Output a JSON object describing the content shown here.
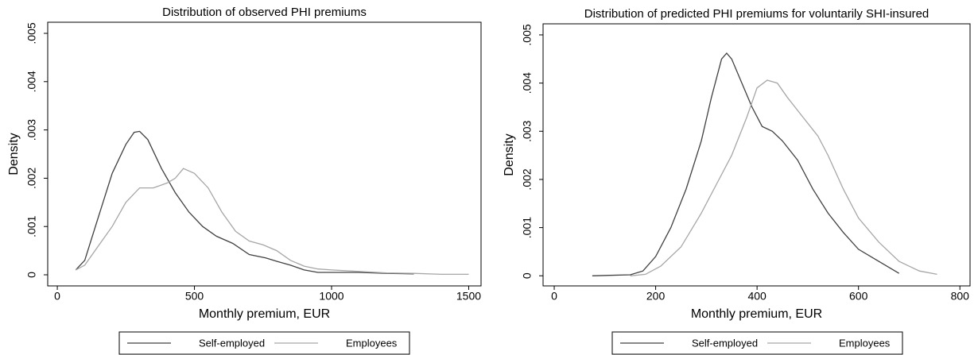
{
  "chart_data": [
    {
      "type": "line",
      "title": "Distribution of observed PHI premiums",
      "xlabel": "Monthly premium, EUR",
      "ylabel": "Density",
      "xlim": [
        -35,
        1545
      ],
      "ylim": [
        -0.00023,
        0.00523
      ],
      "xticks": [
        0,
        500,
        1000,
        1500
      ],
      "yticks": [
        0,
        {
          "value": 0.001,
          "label": ".001"
        },
        {
          "value": 0.002,
          "label": ".002"
        },
        {
          "value": 0.003,
          "label": ".003"
        },
        {
          "value": 0.004,
          "label": ".004"
        },
        {
          "value": 0.005,
          "label": ".005"
        }
      ],
      "series": [
        {
          "name": "Self-employed",
          "color": "#404040",
          "x": [
            67,
            100,
            150,
            200,
            250,
            280,
            300,
            330,
            380,
            430,
            480,
            530,
            580,
            640,
            700,
            760,
            800,
            850,
            900,
            950,
            1000,
            1100,
            1200,
            1300
          ],
          "values": [
            0.0001,
            0.0003,
            0.0012,
            0.0021,
            0.0027,
            0.00295,
            0.00297,
            0.0028,
            0.0022,
            0.0017,
            0.0013,
            0.001,
            0.0008,
            0.00065,
            0.00042,
            0.00035,
            0.00028,
            0.0002,
            0.0001,
            5e-05,
            5e-05,
            5e-05,
            3e-05,
            2e-05
          ]
        },
        {
          "name": "Employees",
          "color": "#a6a6a6",
          "x": [
            67,
            100,
            150,
            200,
            250,
            300,
            350,
            400,
            430,
            460,
            500,
            550,
            600,
            650,
            700,
            750,
            800,
            850,
            900,
            950,
            1000,
            1100,
            1200,
            1300,
            1400,
            1500
          ],
          "values": [
            0.0001,
            0.0002,
            0.0006,
            0.001,
            0.0015,
            0.0018,
            0.0018,
            0.0019,
            0.002,
            0.0022,
            0.0021,
            0.0018,
            0.0013,
            0.0009,
            0.0007,
            0.00062,
            0.0005,
            0.0003,
            0.00018,
            0.00012,
            0.0001,
            7e-05,
            4e-05,
            3e-05,
            1e-05,
            1e-05
          ]
        }
      ]
    },
    {
      "type": "line",
      "title": "Distribution of predicted PHI premiums for voluntarily SHI-insured",
      "xlabel": "Monthly premium, EUR",
      "ylabel": "Density",
      "xlim": [
        -22,
        820
      ],
      "ylim": [
        -0.00021,
        0.00523
      ],
      "xticks": [
        0,
        200,
        400,
        600,
        800
      ],
      "yticks": [
        0,
        {
          "value": 0.001,
          "label": ".001"
        },
        {
          "value": 0.002,
          "label": ".002"
        },
        {
          "value": 0.003,
          "label": ".003"
        },
        {
          "value": 0.004,
          "label": ".004"
        },
        {
          "value": 0.005,
          "label": ".005"
        }
      ],
      "series": [
        {
          "name": "Self-employed",
          "color": "#404040",
          "x": [
            75,
            150,
            175,
            200,
            230,
            260,
            290,
            310,
            330,
            340,
            350,
            370,
            390,
            410,
            430,
            450,
            480,
            510,
            540,
            570,
            600,
            640,
            680
          ],
          "values": [
            0,
            2e-05,
            0.0001,
            0.0004,
            0.001,
            0.0018,
            0.0028,
            0.0037,
            0.0045,
            0.00462,
            0.0045,
            0.004,
            0.0035,
            0.0031,
            0.003,
            0.0028,
            0.0024,
            0.0018,
            0.0013,
            0.0009,
            0.00055,
            0.0003,
            5e-05
          ]
        },
        {
          "name": "Employees",
          "color": "#a6a6a6",
          "x": [
            150,
            180,
            210,
            250,
            290,
            320,
            350,
            380,
            400,
            420,
            440,
            460,
            490,
            520,
            540,
            570,
            600,
            640,
            680,
            720,
            755
          ],
          "values": [
            0,
            3e-05,
            0.0002,
            0.0006,
            0.0013,
            0.0019,
            0.0025,
            0.0033,
            0.0039,
            0.00406,
            0.004,
            0.0037,
            0.0033,
            0.0029,
            0.0025,
            0.0018,
            0.0012,
            0.0007,
            0.0003,
            0.0001,
            3e-05
          ]
        }
      ]
    }
  ]
}
